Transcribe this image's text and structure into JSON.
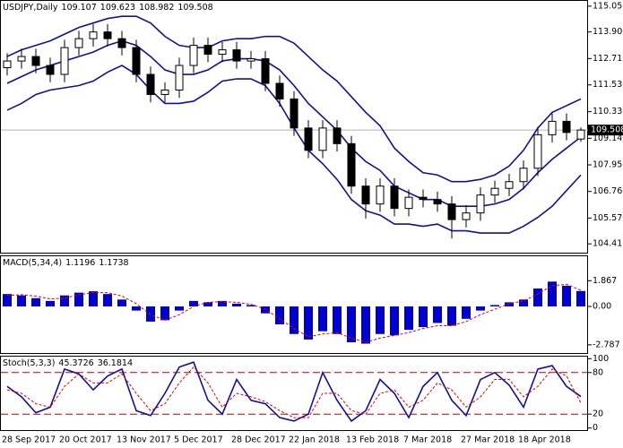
{
  "chart_data": [
    {
      "type": "candlestick",
      "title": "USDJPY,Daily",
      "categories": [
        "28 Sep 2017",
        null,
        null,
        null,
        "20 Oct 2017",
        null,
        null,
        null,
        "13 Nov 2017",
        null,
        null,
        null,
        "5 Dec 2017",
        null,
        null,
        null,
        "28 Dec 2017",
        null,
        null,
        null,
        "22 Jan 2018",
        null,
        null,
        null,
        "13 Feb 2018",
        null,
        null,
        null,
        "7 Mar 2018",
        null,
        null,
        null,
        "27 Mar 2018",
        null,
        null,
        null,
        "18 Apr 2018",
        null,
        null,
        null,
        null
      ],
      "open": [
        112.3,
        112.6,
        112.8,
        112.4,
        112.0,
        113.2,
        113.6,
        113.9,
        113.6,
        113.2,
        112.0,
        111.1,
        111.3,
        112.4,
        113.3,
        112.9,
        113.1,
        112.6,
        112.7,
        111.6,
        110.9,
        109.6,
        108.6,
        109.6,
        108.9,
        107.0,
        106.2,
        107.0,
        106.0,
        106.5,
        106.4,
        106.2,
        105.5,
        105.8,
        106.6,
        106.9,
        107.2,
        107.8,
        109.3,
        109.9,
        109.107
      ],
      "high": [
        112.95,
        113.15,
        113.15,
        112.75,
        113.55,
        113.95,
        114.25,
        114.25,
        113.95,
        113.55,
        112.35,
        111.65,
        112.75,
        113.65,
        113.65,
        113.45,
        113.45,
        113.05,
        113.05,
        111.95,
        111.25,
        109.95,
        109.95,
        109.95,
        109.25,
        107.35,
        107.35,
        107.35,
        106.85,
        106.85,
        106.75,
        106.55,
        106.15,
        106.95,
        107.25,
        107.55,
        108.15,
        109.65,
        110.25,
        110.25,
        109.623
      ],
      "low": [
        111.95,
        112.25,
        112.05,
        111.65,
        111.65,
        112.85,
        113.25,
        113.25,
        112.85,
        111.65,
        110.75,
        110.75,
        110.95,
        112.05,
        112.55,
        112.55,
        112.25,
        112.25,
        111.25,
        110.55,
        109.25,
        108.25,
        108.25,
        108.55,
        106.65,
        105.55,
        105.85,
        105.65,
        105.65,
        106.05,
        105.85,
        104.65,
        105.15,
        105.45,
        106.25,
        106.55,
        106.85,
        107.45,
        108.95,
        109.05,
        108.982
      ],
      "close": [
        112.6,
        112.8,
        112.4,
        112.0,
        113.2,
        113.6,
        113.9,
        113.6,
        113.2,
        112.0,
        111.1,
        111.3,
        112.4,
        113.3,
        112.9,
        113.1,
        112.6,
        112.7,
        111.6,
        110.9,
        109.6,
        108.6,
        109.6,
        108.9,
        107.0,
        106.2,
        107.0,
        106.0,
        106.5,
        106.4,
        106.2,
        105.5,
        105.8,
        106.6,
        106.9,
        107.2,
        107.8,
        109.3,
        109.9,
        109.4,
        109.508
      ],
      "bands_color": "#10109a",
      "upper": [
        112.8,
        113.1,
        113.3,
        113.5,
        113.8,
        114.1,
        114.3,
        114.5,
        114.6,
        114.6,
        114.3,
        113.7,
        113.3,
        113.2,
        113.2,
        113.5,
        113.6,
        113.6,
        113.7,
        113.7,
        113.4,
        112.8,
        112.2,
        111.7,
        111.0,
        110.3,
        109.7,
        108.7,
        108.1,
        107.6,
        107.5,
        107.2,
        107.2,
        107.3,
        107.5,
        107.9,
        108.6,
        109.6,
        110.3,
        110.6,
        110.9
      ],
      "middle": [
        111.6,
        111.9,
        112.2,
        112.4,
        112.6,
        112.8,
        113.0,
        113.3,
        113.5,
        113.3,
        112.8,
        112.2,
        112.0,
        112.0,
        112.2,
        112.6,
        112.7,
        112.7,
        112.6,
        112.2,
        111.5,
        110.7,
        110.1,
        109.5,
        108.7,
        108.1,
        107.7,
        107.0,
        106.7,
        106.4,
        106.4,
        106.1,
        106.1,
        106.1,
        106.2,
        106.4,
        106.9,
        107.6,
        108.2,
        108.7,
        109.2
      ],
      "lower": [
        110.4,
        110.7,
        111.1,
        111.3,
        111.4,
        111.5,
        111.7,
        112.1,
        112.4,
        112.0,
        111.3,
        110.7,
        110.7,
        110.8,
        111.2,
        111.7,
        111.8,
        111.8,
        111.5,
        110.7,
        109.6,
        108.6,
        108.0,
        107.3,
        106.4,
        105.9,
        105.7,
        105.3,
        105.3,
        105.2,
        105.3,
        105.0,
        105.0,
        104.9,
        104.9,
        104.9,
        105.2,
        105.6,
        106.1,
        106.8,
        107.5
      ],
      "ylim": [
        104.02,
        115.29
      ],
      "yticks": [
        115.055,
        {
          "value": 113.9,
          "label": "113.900"
        },
        {
          "value": 112.71,
          "label": "112.710"
        },
        {
          "value": 111.53,
          "label": "111.530"
        },
        {
          "value": 110.33,
          "label": "110.330"
        },
        {
          "value": 109.14,
          "label": "109.140"
        },
        {
          "value": 107.95,
          "label": "107.950"
        },
        {
          "value": 106.76,
          "label": "106.760"
        },
        {
          "value": 105.57,
          "label": "105.570"
        },
        104.415
      ]
    },
    {
      "type": "bar",
      "title": "MACD(5,34,4)",
      "color": "#0000cc",
      "values": [
        0.9,
        0.8,
        0.6,
        0.4,
        0.8,
        1.0,
        1.1,
        0.9,
        0.5,
        -0.3,
        -1.1,
        -1.0,
        -0.3,
        0.4,
        0.3,
        0.4,
        0.2,
        0.1,
        -0.5,
        -1.3,
        -2.0,
        -2.4,
        -1.8,
        -2.0,
        -2.6,
        -2.7,
        -2.0,
        -2.1,
        -1.7,
        -1.5,
        -1.2,
        -1.4,
        -0.9,
        -0.3,
        0.1,
        0.3,
        0.5,
        1.3,
        1.8,
        1.5,
        1.1196
      ],
      "signal": {
        "color": "#e00000",
        "values": [
          0.8,
          0.85,
          0.75,
          0.55,
          0.6,
          0.85,
          1.0,
          1.0,
          0.75,
          0.2,
          -0.6,
          -1.0,
          -0.6,
          0.0,
          0.3,
          0.35,
          0.3,
          0.15,
          -0.2,
          -0.9,
          -1.6,
          -2.2,
          -2.0,
          -1.9,
          -2.3,
          -2.6,
          -2.3,
          -2.1,
          -1.9,
          -1.6,
          -1.4,
          -1.4,
          -1.1,
          -0.6,
          -0.2,
          0.2,
          0.4,
          0.9,
          1.5,
          1.6,
          1.1738
        ]
      },
      "ylim": [
        -3.38,
        3.64
      ],
      "yticks": [
        1.867,
        {
          "value": 0,
          "label": "0.00"
        },
        -2.787
      ]
    },
    {
      "type": "line",
      "title": "Stoch(5,3,3)",
      "series": [
        {
          "color": "#10109a",
          "values": [
            60,
            45,
            22,
            30,
            85,
            78,
            55,
            75,
            85,
            25,
            18,
            50,
            88,
            95,
            40,
            20,
            70,
            40,
            35,
            15,
            10,
            20,
            80,
            40,
            10,
            25,
            70,
            50,
            15,
            60,
            80,
            40,
            18,
            70,
            80,
            62,
            30,
            85,
            90,
            60,
            45.3726
          ]
        },
        {
          "color": "#e00000",
          "values": [
            55,
            50,
            35,
            30,
            60,
            78,
            65,
            65,
            78,
            50,
            25,
            35,
            65,
            88,
            65,
            30,
            50,
            45,
            38,
            25,
            15,
            15,
            50,
            50,
            25,
            20,
            50,
            55,
            30,
            40,
            65,
            55,
            30,
            45,
            70,
            70,
            45,
            60,
            85,
            75,
            36.1814
          ]
        }
      ],
      "levels": [
        80,
        20
      ],
      "levels_color": "#c00000",
      "ylim": [
        -3,
        103
      ],
      "yticks": [
        100,
        80,
        20,
        0
      ]
    }
  ]
}
